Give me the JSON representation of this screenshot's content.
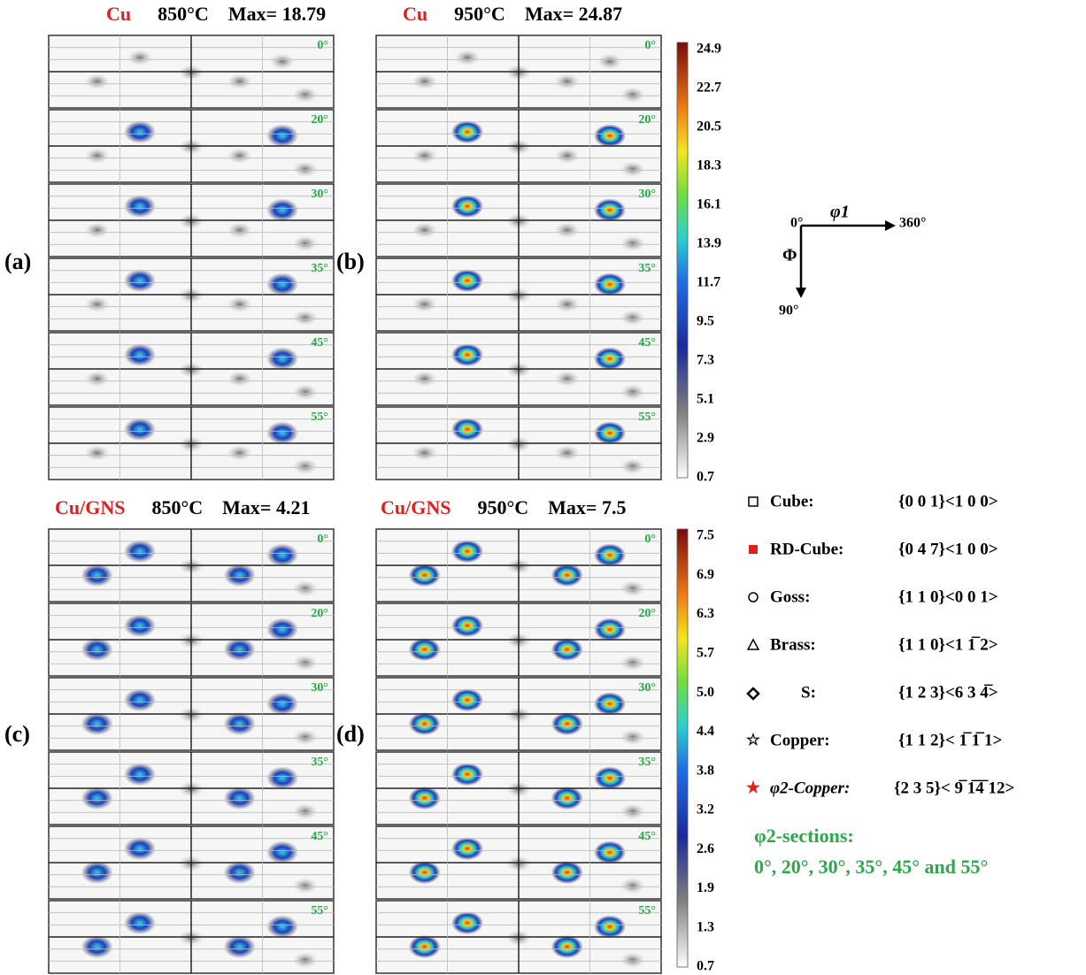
{
  "panels": [
    {
      "label": "(a)",
      "material": "Cu",
      "temperature": "850°C",
      "max": "Max= 18.79",
      "sections": [
        "0°",
        "20°",
        "30°",
        "35°",
        "45°",
        "55°"
      ]
    },
    {
      "label": "(b)",
      "material": "Cu",
      "temperature": "950°C",
      "max": "Max= 24.87",
      "sections": [
        "0°",
        "20°",
        "30°",
        "35°",
        "45°",
        "55°"
      ]
    },
    {
      "label": "(c)",
      "material": "Cu/GNS",
      "temperature": "850°C",
      "max": "Max= 4.21",
      "sections": [
        "0°",
        "20°",
        "30°",
        "35°",
        "45°",
        "55°"
      ]
    },
    {
      "label": "(d)",
      "material": "Cu/GNS",
      "temperature": "950°C",
      "max": "Max= 7.5",
      "sections": [
        "0°",
        "20°",
        "30°",
        "35°",
        "45°",
        "55°"
      ]
    }
  ],
  "colorbars": [
    [
      "24.9",
      "22.7",
      "20.5",
      "18.3",
      "16.1",
      "13.9",
      "11.7",
      "9.5",
      "7.3",
      "5.1",
      "2.9",
      "0.7"
    ],
    [
      "7.5",
      "6.9",
      "6.3",
      "5.7",
      "5.0",
      "4.4",
      "3.8",
      "3.2",
      "2.6",
      "1.9",
      "1.3",
      "0.7"
    ]
  ],
  "axes": {
    "origin": "0°",
    "phi1": "φ1",
    "end": "360°",
    "Phi": "Φ",
    "bottom": "90°"
  },
  "legend": [
    {
      "name": "Cube:",
      "notation": "{0 0 1}<1 0 0>"
    },
    {
      "name": "RD-Cube:",
      "notation": "{0 4 7}<1 0 0>"
    },
    {
      "name": "Goss:",
      "notation": "{1 1 0}<0 0 1>"
    },
    {
      "name": "Brass:",
      "notation": "{1 1 0}<1 1̅ 2>"
    },
    {
      "name": "S:",
      "notation": "{1 2 3}<6 3 4̅>"
    },
    {
      "name": "Copper:",
      "notation": "{1 1 2}< 1̅ 1̅ 1>"
    },
    {
      "name": "φ2-Copper:",
      "notation": "{2 3 5}< 9̅ 1̅4̅ 12>"
    }
  ],
  "sections_note": {
    "title": "φ2-sections:",
    "list": "0°, 20°, 30°, 35°, 45° and 55°"
  }
}
